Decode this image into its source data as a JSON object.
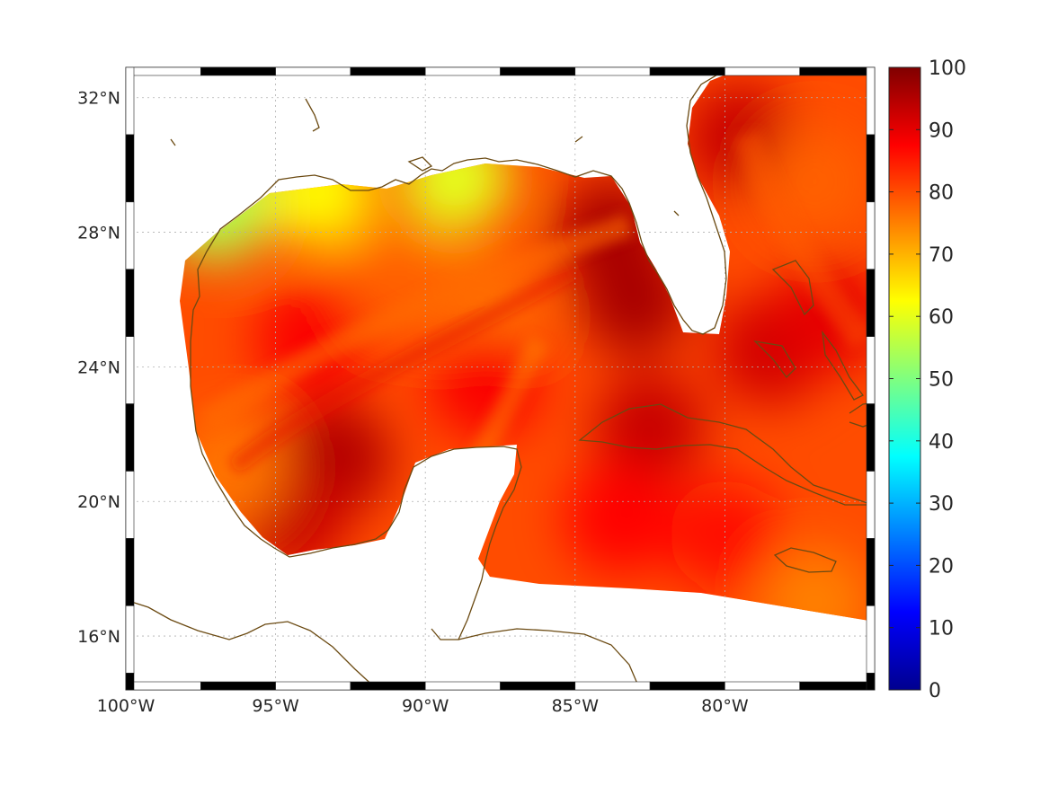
{
  "chart_data": {
    "type": "heatmap",
    "title": "",
    "projection": "lon-lat map with coastlines",
    "x_range": [
      -100,
      -75
    ],
    "y_range": [
      14.4,
      32.9
    ],
    "x_ticks": [
      {
        "value": -100,
        "label": "100°W"
      },
      {
        "value": -95,
        "label": "95°W"
      },
      {
        "value": -90,
        "label": "90°W"
      },
      {
        "value": -85,
        "label": "85°W"
      },
      {
        "value": -80,
        "label": "80°W"
      }
    ],
    "y_ticks": [
      {
        "value": 16,
        "label": "16°N"
      },
      {
        "value": 20,
        "label": "20°N"
      },
      {
        "value": 24,
        "label": "24°N"
      },
      {
        "value": 28,
        "label": "28°N"
      },
      {
        "value": 32,
        "label": "32°N"
      }
    ],
    "grid": true,
    "colorbar": {
      "colormap": "jet",
      "range": [
        0,
        100
      ],
      "ticks": [
        0,
        10,
        20,
        30,
        40,
        50,
        60,
        70,
        80,
        90,
        100
      ],
      "placement": "right"
    },
    "base_value": 80,
    "field_features": [
      {
        "lon": -97.0,
        "lat": 28.8,
        "value": 55
      },
      {
        "lon": -89.0,
        "lat": 29.6,
        "value": 60
      },
      {
        "lon": -93.5,
        "lat": 29.2,
        "value": 63
      },
      {
        "lon": -83.8,
        "lat": 28.0,
        "value": 96
      },
      {
        "lon": -83.0,
        "lat": 26.0,
        "value": 96
      },
      {
        "lon": -93.0,
        "lat": 21.3,
        "value": 95
      },
      {
        "lon": -94.5,
        "lat": 19.5,
        "value": 93
      },
      {
        "lon": -96.5,
        "lat": 21.0,
        "value": 76
      },
      {
        "lon": -88.0,
        "lat": 25.5,
        "value": 76
      },
      {
        "lon": -91.0,
        "lat": 26.5,
        "value": 78
      },
      {
        "lon": -79.5,
        "lat": 30.8,
        "value": 93
      },
      {
        "lon": -77.0,
        "lat": 29.5,
        "value": 78
      },
      {
        "lon": -78.5,
        "lat": 24.5,
        "value": 92
      },
      {
        "lon": -76.5,
        "lat": 25.5,
        "value": 90
      },
      {
        "lon": -82.5,
        "lat": 22.2,
        "value": 93
      },
      {
        "lon": -83.5,
        "lat": 19.5,
        "value": 87
      },
      {
        "lon": -77.0,
        "lat": 17.0,
        "value": 75
      },
      {
        "lon": -80.0,
        "lat": 19.0,
        "value": 86
      },
      {
        "lon": -93.8,
        "lat": 24.8,
        "value": 88
      },
      {
        "lon": -88.0,
        "lat": 23.5,
        "value": 88
      }
    ]
  }
}
